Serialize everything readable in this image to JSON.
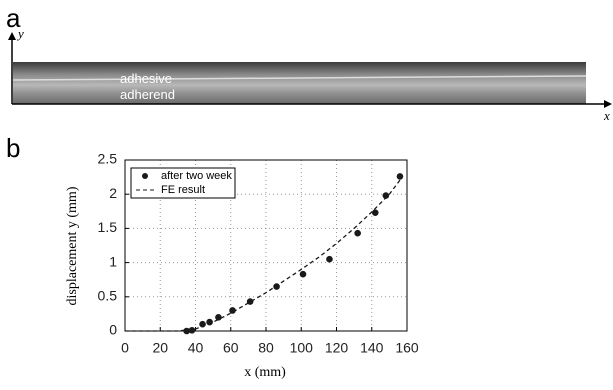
{
  "panel_a": {
    "label": "a",
    "y_label": "y",
    "x_label": "x",
    "layers": [
      "adhesive",
      "adherend"
    ]
  },
  "panel_b_label": "b",
  "chart_data": {
    "type": "scatter",
    "x_label": "x   (mm)",
    "y_label": "displacement y (mm)",
    "xlim": [
      0,
      160
    ],
    "xticks": [
      0,
      20,
      40,
      60,
      80,
      100,
      120,
      140,
      160
    ],
    "ylim": [
      0,
      2.5
    ],
    "yticks": [
      0,
      0.5,
      1,
      1.5,
      2,
      2.5
    ],
    "grid": true,
    "legend": "upper left",
    "series": [
      {
        "name": "after two week",
        "type": "scatter",
        "color": "#1a1a1a",
        "x": [
          35,
          38,
          44,
          48,
          53,
          61,
          71,
          86,
          101,
          116,
          132,
          142,
          148,
          156
        ],
        "values": [
          0,
          0.01,
          0.1,
          0.13,
          0.2,
          0.3,
          0.43,
          0.65,
          0.83,
          1.05,
          1.43,
          1.73,
          1.98,
          2.26
        ]
      },
      {
        "name": "FE result",
        "type": "line",
        "color": "#1a1a1a",
        "x": [
          0,
          10,
          20,
          30,
          40,
          50,
          60,
          70,
          80,
          90,
          100,
          110,
          120,
          130,
          140,
          150,
          157
        ],
        "values": [
          0,
          0,
          0,
          0,
          0.03,
          0.13,
          0.26,
          0.41,
          0.56,
          0.73,
          0.9,
          1.08,
          1.28,
          1.5,
          1.74,
          2.0,
          2.24
        ]
      }
    ]
  }
}
